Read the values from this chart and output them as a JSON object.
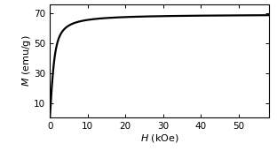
{
  "title": "",
  "xlabel": "$H$ (kOe)",
  "ylabel": "$M$ (emu/g)",
  "xlim": [
    0,
    58
  ],
  "ylim": [
    0,
    76
  ],
  "xticks": [
    0,
    10,
    20,
    30,
    40,
    50
  ],
  "yticks": [
    10,
    30,
    50,
    70
  ],
  "saturation": 69.5,
  "x_half": 0.55,
  "background_color": "#ffffff",
  "line_color": "#000000",
  "line_width": 1.6,
  "figsize": [
    3.12,
    1.71
  ],
  "dpi": 100
}
